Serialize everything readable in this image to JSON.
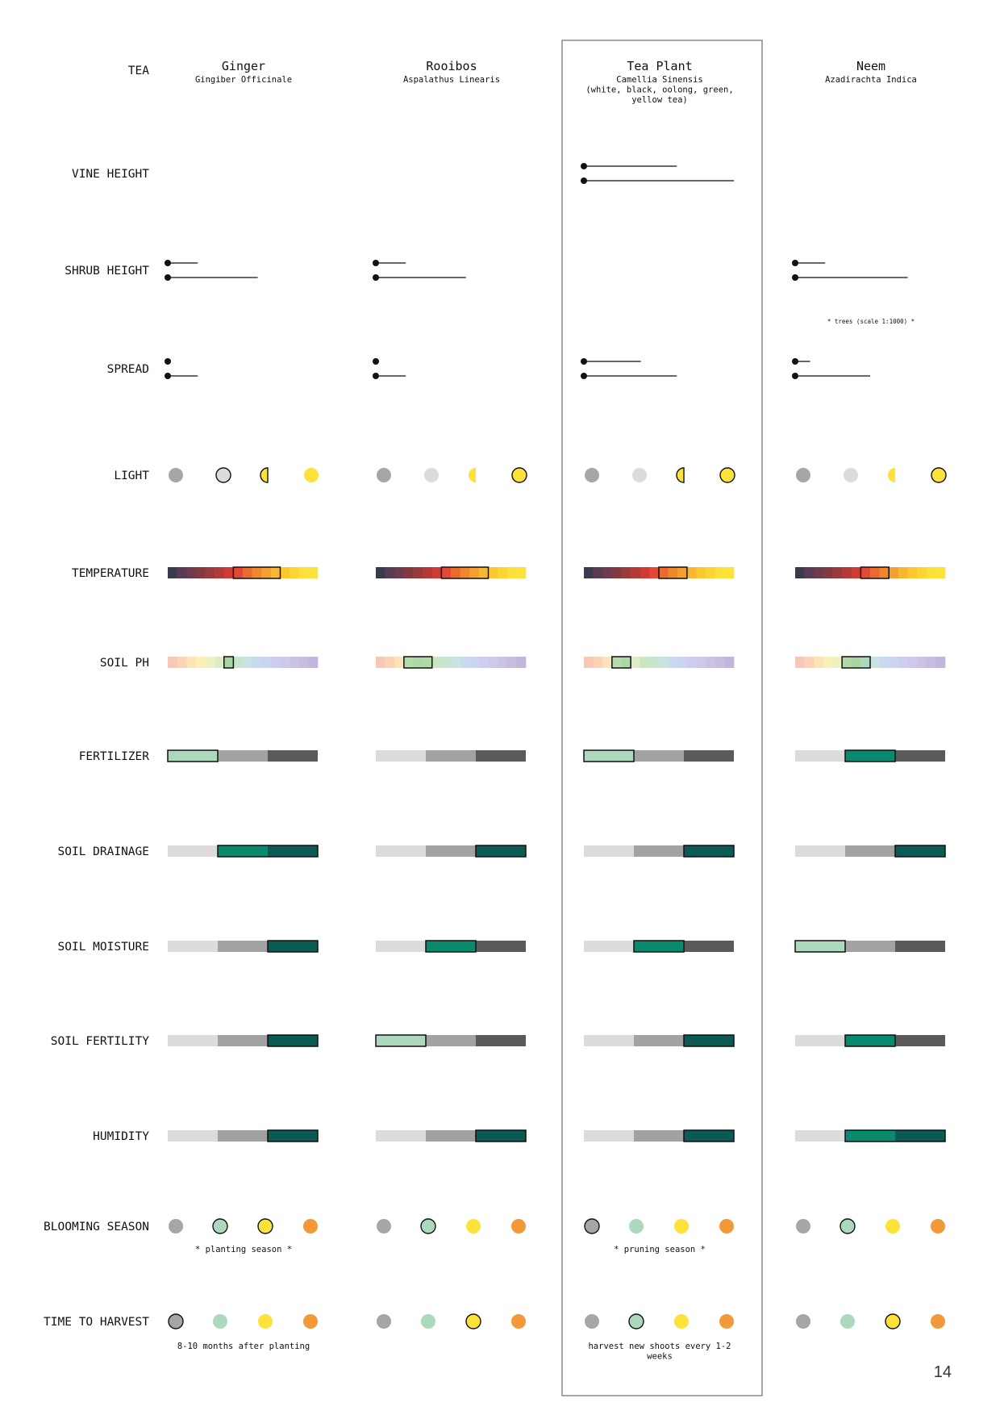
{
  "page_number": "14",
  "row_labels": {
    "tea": "TEA",
    "vine_height": "VINE HEIGHT",
    "shrub_height": "SHRUB HEIGHT",
    "spread": "SPREAD",
    "light": "LIGHT",
    "temperature": "TEMPERATURE",
    "soil_ph": "SOIL PH",
    "fertilizer": "FERTILIZER",
    "soil_drainage": "SOIL DRAINAGE",
    "soil_moisture": "SOIL MOISTURE",
    "soil_fertility": "SOIL FERTILITY",
    "humidity": "HUMIDITY",
    "blooming_season": "BLOOMING SEASON",
    "time_to_harvest": "TIME TO HARVEST"
  },
  "colors": {
    "gray_dot": "#a6a6a6",
    "light_gray_dot": "#dcdcdc",
    "yellow": "#fde23a",
    "mint": "#acd8bd",
    "orange": "#f29a39",
    "teal": "#078a6e",
    "dark_teal": "#0c5a54",
    "bar_light": "#dcdcdc",
    "bar_mid": "#a2a2a2",
    "bar_dark": "#5a5a5a",
    "temperature_scale": [
      "#3b3a4d",
      "#5a3b56",
      "#6e3a4e",
      "#84393f",
      "#9a3a3a",
      "#b43a3a",
      "#cf3a35",
      "#e34834",
      "#ec6a2e",
      "#f1862b",
      "#f4a030",
      "#f8b632",
      "#fbc830",
      "#fdd532",
      "#fde03a",
      "#fde23a"
    ],
    "ph_scale": [
      "#f9c7b8",
      "#fbd3b6",
      "#fde3b8",
      "#fbf0b6",
      "#eef2c2",
      "#dcecc4",
      "#cce6c4",
      "#c8e4d0",
      "#c9e2e2",
      "#c9daee",
      "#cbd4f0",
      "#cdcdf0",
      "#cec8ec",
      "#ccc2e6",
      "#c8bce0",
      "#c2b6dc"
    ]
  },
  "chart_data": {
    "type": "table",
    "note": "",
    "columns": [
      {
        "name": "Ginger",
        "latin": [
          "Gingiber Officinale"
        ],
        "highlighted": false,
        "vine_height": null,
        "shrub_height": [
          0.2,
          0.6
        ],
        "spread": [
          0.02,
          0.2
        ],
        "tree_note": "",
        "light": {
          "colors": [
            "gray_dot",
            "light_gray_dot",
            "yellow",
            "yellow"
          ],
          "shapes": [
            "full",
            "full",
            "half",
            "full"
          ],
          "selected": [
            false,
            true,
            true,
            false
          ]
        },
        "temperature": [
          7,
          11
        ],
        "soil_ph": [
          6,
          6
        ],
        "fertilizer": {
          "levels": [
            "mint",
            "bar_mid",
            "bar_dark"
          ],
          "selected": [
            0
          ]
        },
        "soil_drainage": {
          "levels": [
            "bar_light",
            "teal",
            "dark_teal"
          ],
          "selected": [
            1,
            2
          ]
        },
        "soil_moisture": {
          "levels": [
            "bar_light",
            "bar_mid",
            "dark_teal"
          ],
          "selected": [
            2
          ]
        },
        "soil_fertility": {
          "levels": [
            "bar_light",
            "bar_mid",
            "dark_teal"
          ],
          "selected": [
            2
          ]
        },
        "humidity": {
          "levels": [
            "bar_light",
            "bar_mid",
            "dark_teal"
          ],
          "selected": [
            2
          ]
        },
        "blooming_season": {
          "colors": [
            "gray_dot",
            "mint",
            "yellow",
            "orange"
          ],
          "selected": [
            1,
            2
          ]
        },
        "blooming_note": "* planting season *",
        "time_to_harvest": {
          "colors": [
            "gray_dot",
            "mint",
            "yellow",
            "orange"
          ],
          "selected": [
            0
          ]
        },
        "harvest_note": [
          "8-10 months after planting"
        ]
      },
      {
        "name": "Rooibos",
        "latin": [
          "Aspalathus Linearis"
        ],
        "highlighted": false,
        "vine_height": null,
        "shrub_height": [
          0.2,
          0.6
        ],
        "spread": [
          0.02,
          0.2
        ],
        "tree_note": "",
        "light": {
          "colors": [
            "gray_dot",
            "light_gray_dot",
            "yellow",
            "yellow"
          ],
          "shapes": [
            "full",
            "full",
            "half",
            "full"
          ],
          "selected": [
            false,
            false,
            false,
            true
          ]
        },
        "temperature": [
          7,
          11
        ],
        "soil_ph": [
          3,
          5
        ],
        "fertilizer": {
          "levels": [
            "bar_light",
            "bar_mid",
            "bar_dark"
          ],
          "selected": []
        },
        "soil_drainage": {
          "levels": [
            "bar_light",
            "bar_mid",
            "dark_teal"
          ],
          "selected": [
            2
          ]
        },
        "soil_moisture": {
          "levels": [
            "bar_light",
            "teal",
            "bar_dark"
          ],
          "selected": [
            1
          ]
        },
        "soil_fertility": {
          "levels": [
            "mint",
            "bar_mid",
            "bar_dark"
          ],
          "selected": [
            0
          ]
        },
        "humidity": {
          "levels": [
            "bar_light",
            "bar_mid",
            "dark_teal"
          ],
          "selected": [
            2
          ]
        },
        "blooming_season": {
          "colors": [
            "gray_dot",
            "mint",
            "yellow",
            "orange"
          ],
          "selected": [
            1
          ]
        },
        "blooming_note": "",
        "time_to_harvest": {
          "colors": [
            "gray_dot",
            "mint",
            "yellow",
            "orange"
          ],
          "selected": [
            2
          ]
        },
        "harvest_note": []
      },
      {
        "name": "Tea Plant",
        "latin": [
          "Camellia Sinensis",
          "(white, black, oolong, green,",
          "yellow tea)"
        ],
        "highlighted": true,
        "vine_height": [
          0.62,
          1.0
        ],
        "shrub_height": null,
        "spread": [
          0.38,
          0.62
        ],
        "tree_note": "",
        "light": {
          "colors": [
            "gray_dot",
            "light_gray_dot",
            "yellow",
            "yellow"
          ],
          "shapes": [
            "full",
            "full",
            "half",
            "full"
          ],
          "selected": [
            false,
            false,
            true,
            true
          ]
        },
        "temperature": [
          8,
          10
        ],
        "soil_ph": [
          3,
          4
        ],
        "fertilizer": {
          "levels": [
            "mint",
            "bar_mid",
            "bar_dark"
          ],
          "selected": [
            0
          ]
        },
        "soil_drainage": {
          "levels": [
            "bar_light",
            "bar_mid",
            "dark_teal"
          ],
          "selected": [
            2
          ]
        },
        "soil_moisture": {
          "levels": [
            "bar_light",
            "teal",
            "bar_dark"
          ],
          "selected": [
            1
          ]
        },
        "soil_fertility": {
          "levels": [
            "bar_light",
            "bar_mid",
            "dark_teal"
          ],
          "selected": [
            2
          ]
        },
        "humidity": {
          "levels": [
            "bar_light",
            "bar_mid",
            "dark_teal"
          ],
          "selected": [
            2
          ]
        },
        "blooming_season": {
          "colors": [
            "gray_dot",
            "mint",
            "yellow",
            "orange"
          ],
          "selected": [
            0
          ]
        },
        "blooming_note": "* pruning season *",
        "time_to_harvest": {
          "colors": [
            "gray_dot",
            "mint",
            "yellow",
            "orange"
          ],
          "selected": [
            1
          ]
        },
        "harvest_note": [
          "harvest new shoots every 1-2",
          "weeks"
        ]
      },
      {
        "name": "Neem",
        "latin": [
          "Azadirachta Indica"
        ],
        "highlighted": false,
        "vine_height": null,
        "shrub_height": [
          0.2,
          0.75
        ],
        "spread": [
          0.1,
          0.5
        ],
        "tree_note": "* trees (scale 1:1000) *",
        "light": {
          "colors": [
            "gray_dot",
            "light_gray_dot",
            "yellow",
            "yellow"
          ],
          "shapes": [
            "full",
            "full",
            "half",
            "full"
          ],
          "selected": [
            false,
            false,
            false,
            true
          ]
        },
        "temperature": [
          7,
          9
        ],
        "soil_ph": [
          5,
          7
        ],
        "fertilizer": {
          "levels": [
            "bar_light",
            "teal",
            "bar_dark"
          ],
          "selected": [
            1
          ]
        },
        "soil_drainage": {
          "levels": [
            "bar_light",
            "bar_mid",
            "dark_teal"
          ],
          "selected": [
            2
          ]
        },
        "soil_moisture": {
          "levels": [
            "mint",
            "bar_mid",
            "bar_dark"
          ],
          "selected": [
            0
          ]
        },
        "soil_fertility": {
          "levels": [
            "bar_light",
            "teal",
            "bar_dark"
          ],
          "selected": [
            1
          ]
        },
        "humidity": {
          "levels": [
            "bar_light",
            "teal",
            "dark_teal"
          ],
          "selected": [
            1,
            2
          ]
        },
        "blooming_season": {
          "colors": [
            "gray_dot",
            "mint",
            "yellow",
            "orange"
          ],
          "selected": [
            1
          ]
        },
        "blooming_note": "",
        "time_to_harvest": {
          "colors": [
            "gray_dot",
            "mint",
            "yellow",
            "orange"
          ],
          "selected": [
            2
          ]
        },
        "harvest_note": []
      }
    ]
  }
}
